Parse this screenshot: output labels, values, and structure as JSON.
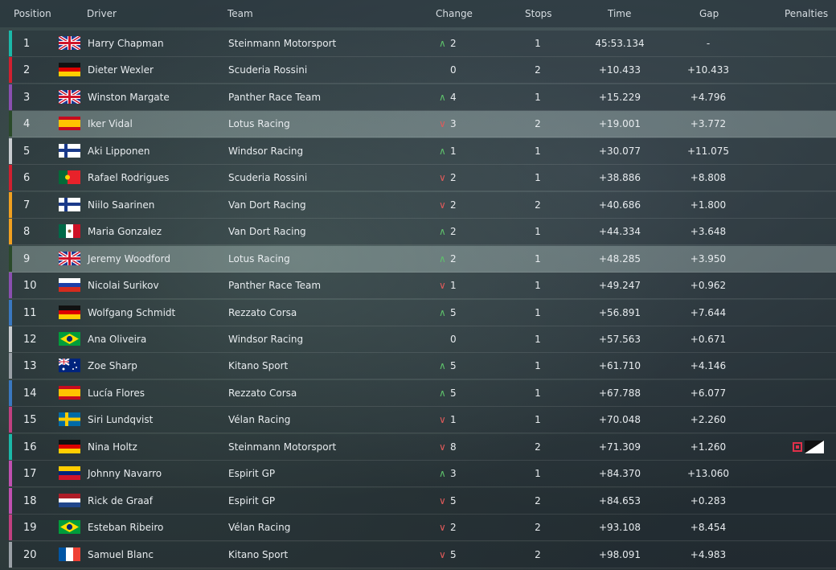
{
  "header": {
    "position": "Position",
    "driver": "Driver",
    "team": "Team",
    "change": "Change",
    "stops": "Stops",
    "time": "Time",
    "gap": "Gap",
    "penalties": "Penalties"
  },
  "rows": [
    {
      "pos": "1",
      "flag": "gb",
      "driver": "Harry Chapman",
      "team": "Steinmann Motorsport",
      "dir": "up",
      "change": "2",
      "stops": "1",
      "time": "45:53.134",
      "gap": "-",
      "color": "#1bb8a8"
    },
    {
      "pos": "2",
      "flag": "de",
      "driver": "Dieter Wexler",
      "team": "Scuderia Rossini",
      "dir": "none",
      "change": "0",
      "stops": "2",
      "time": "+10.433",
      "gap": "+10.433",
      "color": "#d02030"
    },
    {
      "pos": "3",
      "flag": "gb",
      "driver": "Winston Margate",
      "team": "Panther Race Team",
      "dir": "up",
      "change": "4",
      "stops": "1",
      "time": "+15.229",
      "gap": "+4.796",
      "color": "#8a4fb0"
    },
    {
      "pos": "4",
      "flag": "es",
      "driver": "Iker Vidal",
      "team": "Lotus Racing",
      "dir": "down",
      "change": "3",
      "stops": "2",
      "time": "+19.001",
      "gap": "+3.772",
      "color": "#2a4a2a",
      "selected": true
    },
    {
      "pos": "5",
      "flag": "fi",
      "driver": "Aki Lipponen",
      "team": "Windsor Racing",
      "dir": "up",
      "change": "1",
      "stops": "1",
      "time": "+30.077",
      "gap": "+11.075",
      "color": "#c8ccd0"
    },
    {
      "pos": "6",
      "flag": "pt",
      "driver": "Rafael Rodrigues",
      "team": "Scuderia Rossini",
      "dir": "down",
      "change": "2",
      "stops": "1",
      "time": "+38.886",
      "gap": "+8.808",
      "color": "#d02030"
    },
    {
      "pos": "7",
      "flag": "fi",
      "driver": "Niilo Saarinen",
      "team": "Van Dort Racing",
      "dir": "down",
      "change": "2",
      "stops": "2",
      "time": "+40.686",
      "gap": "+1.800",
      "color": "#f0a020"
    },
    {
      "pos": "8",
      "flag": "mx",
      "driver": "Maria Gonzalez",
      "team": "Van Dort Racing",
      "dir": "up",
      "change": "2",
      "stops": "1",
      "time": "+44.334",
      "gap": "+3.648",
      "color": "#f0a020"
    },
    {
      "pos": "9",
      "flag": "gb",
      "driver": "Jeremy Woodford",
      "team": "Lotus Racing",
      "dir": "up",
      "change": "2",
      "stops": "1",
      "time": "+48.285",
      "gap": "+3.950",
      "color": "#2a4a2a",
      "selected": true
    },
    {
      "pos": "10",
      "flag": "ru",
      "driver": "Nicolai Surikov",
      "team": "Panther Race Team",
      "dir": "down",
      "change": "1",
      "stops": "1",
      "time": "+49.247",
      "gap": "+0.962",
      "color": "#8a4fb0"
    },
    {
      "pos": "11",
      "flag": "de",
      "driver": "Wolfgang Schmidt",
      "team": "Rezzato Corsa",
      "dir": "up",
      "change": "5",
      "stops": "1",
      "time": "+56.891",
      "gap": "+7.644",
      "color": "#3a78c0"
    },
    {
      "pos": "12",
      "flag": "br",
      "driver": "Ana Oliveira",
      "team": "Windsor Racing",
      "dir": "none",
      "change": "0",
      "stops": "1",
      "time": "+57.563",
      "gap": "+0.671",
      "color": "#c8ccd0"
    },
    {
      "pos": "13",
      "flag": "au",
      "driver": "Zoe Sharp",
      "team": "Kitano Sport",
      "dir": "up",
      "change": "5",
      "stops": "1",
      "time": "+61.710",
      "gap": "+4.146",
      "color": "#9aa0a6"
    },
    {
      "pos": "14",
      "flag": "es",
      "driver": "Lucía Flores",
      "team": "Rezzato Corsa",
      "dir": "up",
      "change": "5",
      "stops": "1",
      "time": "+67.788",
      "gap": "+6.077",
      "color": "#3a78c0"
    },
    {
      "pos": "15",
      "flag": "se",
      "driver": "Siri Lundqvist",
      "team": "Vélan Racing",
      "dir": "down",
      "change": "1",
      "stops": "1",
      "time": "+70.048",
      "gap": "+2.260",
      "color": "#c04080"
    },
    {
      "pos": "16",
      "flag": "de",
      "driver": "Nina Holtz",
      "team": "Steinmann Motorsport",
      "dir": "down",
      "change": "8",
      "stops": "2",
      "time": "+71.309",
      "gap": "+1.260",
      "color": "#1bb8a8",
      "penalty": true
    },
    {
      "pos": "17",
      "flag": "ve",
      "driver": "Johnny Navarro",
      "team": "Espirit GP",
      "dir": "up",
      "change": "3",
      "stops": "1",
      "time": "+84.370",
      "gap": "+13.060",
      "color": "#c050b0"
    },
    {
      "pos": "18",
      "flag": "nl",
      "driver": "Rick de Graaf",
      "team": "Espirit GP",
      "dir": "down",
      "change": "5",
      "stops": "2",
      "time": "+84.653",
      "gap": "+0.283",
      "color": "#c050b0"
    },
    {
      "pos": "19",
      "flag": "br",
      "driver": "Esteban Ribeiro",
      "team": "Vélan Racing",
      "dir": "down",
      "change": "2",
      "stops": "2",
      "time": "+93.108",
      "gap": "+8.454",
      "color": "#c04080"
    },
    {
      "pos": "20",
      "flag": "fr",
      "driver": "Samuel Blanc",
      "team": "Kitano Sport",
      "dir": "down",
      "change": "5",
      "stops": "2",
      "time": "+98.091",
      "gap": "+4.983",
      "color": "#9aa0a6"
    }
  ]
}
